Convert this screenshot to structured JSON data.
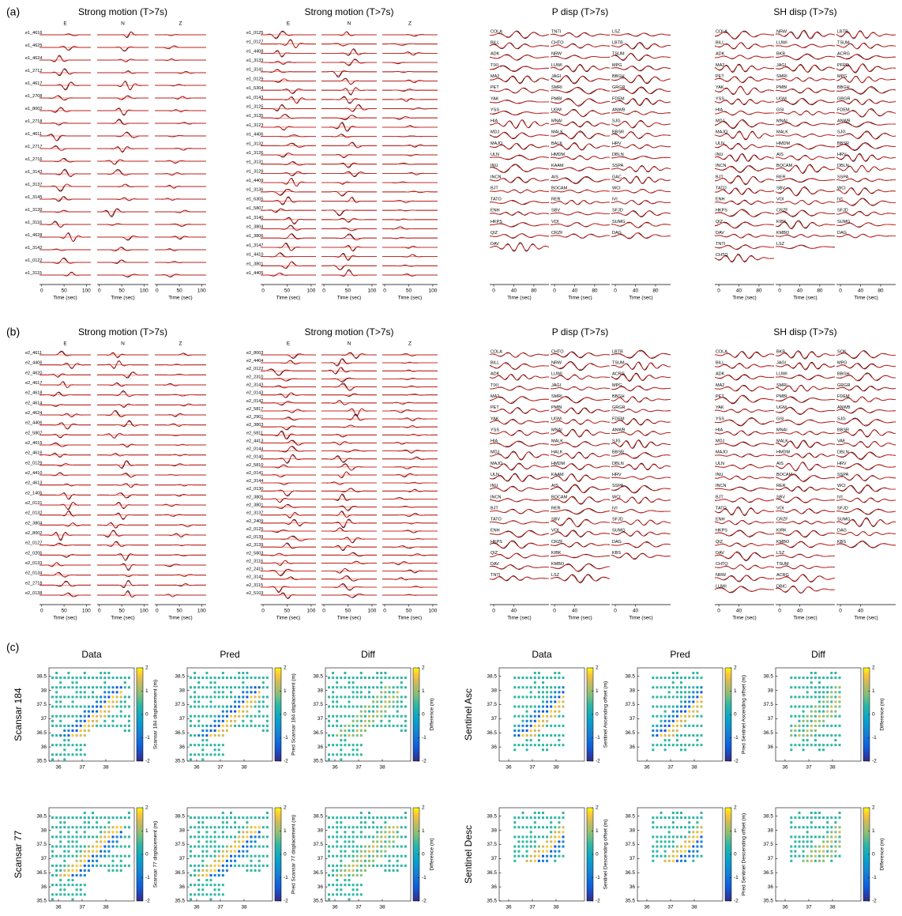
{
  "panels": [
    {
      "label": "(a)",
      "groups": [
        {
          "kind": "strong",
          "title": "Strong motion (T>7s)",
          "components": [
            "E",
            "N",
            "Z"
          ],
          "xlabel": "Time (sec)",
          "xlim": [
            -5,
            110
          ],
          "xticks": [
            0,
            50,
            100
          ],
          "stations": [
            "e1_4616",
            "e1_4625",
            "e1_4624",
            "e1_2712",
            "e1_4617",
            "e1_2708",
            "e1_8002",
            "e1_2718",
            "e1_4611",
            "e1_2717",
            "e1_2716",
            "e1_3143",
            "e1_3137",
            "e1_3145",
            "e1_3139",
            "e1_3116",
            "e1_4628",
            "e1_3142",
            "e1_0122",
            "e1_3115"
          ]
        },
        {
          "kind": "strong",
          "title": "Strong motion (T>7s)",
          "components": [
            "E",
            "N",
            "Z"
          ],
          "xlabel": "Time (sec)",
          "xlim": [
            -5,
            110
          ],
          "xticks": [
            0,
            50,
            100
          ],
          "stations": [
            "e1_0125",
            "e1_0127",
            "e1_4408",
            "e1_3133",
            "e1_3141",
            "e1_0129",
            "e1_6304",
            "e1_0143",
            "e1_3125",
            "e1_3135",
            "e1_3123",
            "e1_4406",
            "e1_3132",
            "e1_3126",
            "e1_3131",
            "e1_3129",
            "e1_4409",
            "e1_3136",
            "e1_6305",
            "e1_5807",
            "e1_3140",
            "e1_3804",
            "e1_3806",
            "e1_3147",
            "e1_4410",
            "e1_3801",
            "e1_4405"
          ]
        },
        {
          "kind": "disp",
          "title": "P disp (T>7s)",
          "xlabel": "Time (sec)",
          "xlim": [
            -8,
            110
          ],
          "xticks": [
            0,
            40,
            80
          ],
          "columns": [
            [
              "COLA",
              "BILL",
              "ADK",
              "TIXI",
              "MA2",
              "PET",
              "YAK",
              "YSS",
              "HIA",
              "MDJ",
              "MAJO",
              "ULN",
              "INU",
              "INCN",
              "BJT",
              "TATO",
              "ENH",
              "HKPS",
              "QIZ",
              "DAV"
            ],
            [
              "TNTI",
              "CHTO",
              "NRW",
              "LUWI",
              "JAGI",
              "SMRI",
              "PMBI",
              "UGM",
              "MNAI",
              "MALK",
              "BALK",
              "HMDM",
              "KAAM",
              "AIS",
              "BOCAM",
              "RER",
              "SBV",
              "VOI",
              "CRZF"
            ],
            [
              "LSZ",
              "LBTB",
              "TSUM",
              "MPG",
              "BBGH",
              "GRGR",
              "FDEM",
              "ANWB",
              "SJG",
              "BBSR",
              "HRV",
              "DBLN",
              "SSPA",
              "GAC",
              "WCI",
              "IVI",
              "SFJD",
              "SUMG",
              "DAG"
            ]
          ]
        },
        {
          "kind": "disp",
          "title": "SH disp (T>7s)",
          "xlabel": "Time (sec)",
          "xlim": [
            -8,
            110
          ],
          "xticks": [
            0,
            40,
            80
          ],
          "columns": [
            [
              "COLA",
              "BILL",
              "ADK",
              "MA2",
              "PET",
              "YAK",
              "YSS",
              "HIA",
              "MDJ",
              "MAJO",
              "ULN",
              "INU",
              "INCN",
              "BJT",
              "TATO",
              "ENH",
              "HKPS",
              "QIZ",
              "DAV",
              "TNTI",
              "CHTO"
            ],
            [
              "NRW",
              "LUWI",
              "BKB",
              "JAGI",
              "SMRI",
              "PMBI",
              "UGM",
              "GSI",
              "MNAI",
              "MALK",
              "HMDM",
              "AIS",
              "BOCAM",
              "RER",
              "SBV",
              "VOI",
              "CRZF",
              "KIBK",
              "KMBO",
              "LSZ"
            ],
            [
              "LBTB",
              "TSUM",
              "ACRG",
              "PFRD",
              "MPG",
              "BBGH",
              "GRGR",
              "FDEM",
              "ANWB",
              "SJG",
              "BBSR",
              "HRV",
              "DBLN",
              "SSPA",
              "WCI",
              "IVI",
              "SFJD",
              "SUMG",
              "DAG"
            ]
          ]
        }
      ]
    },
    {
      "label": "(b)",
      "groups": [
        {
          "kind": "strong",
          "title": "Strong motion (T>7s)",
          "components": [
            "E",
            "N",
            "Z"
          ],
          "xlabel": "Time (sec)",
          "xlim": [
            -5,
            110
          ],
          "xticks": [
            0,
            50,
            100
          ],
          "stations": [
            "e2_4611",
            "e2_4406",
            "e2_4620",
            "e2_4617",
            "e2_4618",
            "e2_4614",
            "e2_4624",
            "e2_4406",
            "e2_5807",
            "e2_4615",
            "e2_4616",
            "e2_0129",
            "e2_4410",
            "e2_4613",
            "e2_1405",
            "e2_0131",
            "e2_0132",
            "e2_3804",
            "e2_8002",
            "e2_0127",
            "e2_0205",
            "e2_0133",
            "e2_0134",
            "e2_2718",
            "e2_0138"
          ]
        },
        {
          "kind": "strong",
          "title": "Strong motion (T>7s)",
          "components": [
            "E",
            "N",
            "Z"
          ],
          "xlabel": "Time (sec)",
          "xlim": [
            -5,
            110
          ],
          "xticks": [
            0,
            50,
            100
          ],
          "stations": [
            "e2_8003",
            "e2_4404",
            "e2_0122",
            "e2_2310",
            "e2_3143",
            "e2_0143",
            "e2_0142",
            "e2_5817",
            "e2_2901",
            "e2_3803",
            "e2_5811",
            "e2_4413",
            "e2_0144",
            "e2_0140",
            "e2_5810",
            "e2_0141",
            "e2_3144",
            "e2_0130",
            "e2_3805",
            "e2_3801",
            "e2_3137",
            "e2_2409",
            "e2_0125",
            "e2_0139",
            "e2_3139",
            "e2_5803",
            "e2_3116",
            "e2_2415",
            "e2_3142",
            "e2_3115",
            "e2_5103"
          ]
        },
        {
          "kind": "disp",
          "title": "P disp (T>7s)",
          "xlabel": "Time (sec)",
          "xlim": [
            -8,
            110
          ],
          "xticks": [
            0,
            40
          ],
          "columns": [
            [
              "COLA",
              "BILL",
              "ADK",
              "TIXI",
              "MA2",
              "PET",
              "YAK",
              "YSS",
              "HIA",
              "MDJ",
              "MAJO",
              "ULN",
              "INU",
              "INCN",
              "BJT",
              "TATO",
              "ENH",
              "HKPS",
              "QIZ",
              "DAV",
              "TNTI"
            ],
            [
              "CHTO",
              "NRW",
              "LUWI",
              "JAGI",
              "SMRI",
              "PMBI",
              "UGM",
              "MNAI",
              "MALK",
              "HALK",
              "HMDM",
              "KAAM",
              "AIS",
              "BOCAM",
              "RER",
              "SBV",
              "VOI",
              "CRZF",
              "KIBK",
              "KMBO",
              "LSZ"
            ],
            [
              "LBTB",
              "TSUM",
              "ACRG",
              "MPG",
              "BBGH",
              "GRGR",
              "FDEM",
              "ANWB",
              "SJG",
              "BBSR",
              "DBLN",
              "HRV",
              "SSPA",
              "WCI",
              "IVI",
              "SFJD",
              "SUMG",
              "DAG",
              "KBS"
            ]
          ]
        },
        {
          "kind": "disp",
          "title": "SH disp (T>7s)",
          "xlabel": "Time (sec)",
          "xlim": [
            -8,
            110
          ],
          "xticks": [
            0,
            40
          ],
          "columns": [
            [
              "COLA",
              "BILL",
              "ADK",
              "MA2",
              "PET",
              "YAK",
              "YSS",
              "HIA",
              "MDJ",
              "MAJO",
              "ULN",
              "INU",
              "INCN",
              "BJT",
              "TATO",
              "ENH",
              "HKPS",
              "QIZ",
              "DAV",
              "CHTO",
              "NRW",
              "LUWI"
            ],
            [
              "BKB",
              "JAGI",
              "LUWI",
              "SMRI",
              "PMBI",
              "UGM",
              "GSI",
              "MNAI",
              "MALK",
              "HMDM",
              "AIS",
              "BOCAM",
              "RER",
              "SBV",
              "VOI",
              "CRZF",
              "KIRK",
              "KMBO",
              "LSZ",
              "TSUM",
              "ACRG",
              "DBIC"
            ],
            [
              "SOK",
              "MPG",
              "BBGH",
              "GRGR",
              "FDEM",
              "ANWB",
              "SJG",
              "BBSR",
              "VAE",
              "DBLN",
              "HRV",
              "SSPA",
              "WCI",
              "IVI",
              "SFJD",
              "SUMG",
              "DAG",
              "KBS"
            ]
          ]
        }
      ]
    }
  ],
  "maps": {
    "label": "(c)",
    "xlim": [
      35.6,
      39.2
    ],
    "ylim": [
      35.5,
      38.8
    ],
    "xticks": [
      36,
      37,
      38
    ],
    "clim": [
      -2,
      2
    ],
    "cticks": [
      -2,
      -1,
      0,
      1,
      2
    ],
    "sets": [
      {
        "headers": [
          "Data",
          "Pred",
          "Diff"
        ],
        "rows": [
          {
            "title": "Scansar 184",
            "yticks": [
              35.5,
              36,
              36.5,
              37,
              37.5,
              38,
              38.5
            ],
            "cbar_labels": [
              "Scansar 184 displacement (m)",
              "Pred Scansar 184 displacement (m)",
              "Difference (m)"
            ]
          },
          {
            "title": "Scansar 77",
            "yticks": [
              35.5,
              36,
              36.5,
              37,
              37.5,
              38,
              38.5
            ],
            "cbar_labels": [
              "Scansar 77 displacement (m)",
              "Pred Scansar 77 displacement (m)",
              "Difference (m)"
            ]
          }
        ]
      },
      {
        "headers": [
          "Data",
          "Pred",
          "Diff"
        ],
        "rows": [
          {
            "title": "Sentinel Asc",
            "yticks": [
              36,
              36.5,
              37,
              37.5,
              38,
              38.5
            ],
            "cbar_labels": [
              "Sentinel Ascending offset (m)",
              "Pred Sentinel Ascending offset (m)",
              "Difference (m)"
            ]
          },
          {
            "title": "Sentinel Desc",
            "yticks": [
              35.5,
              36,
              36.5,
              37,
              37.5,
              38,
              38.5
            ],
            "cbar_labels": [
              "Sentinel Descending offset (m)",
              "Pred Sentinel Descending offset (m)",
              "Difference (m)"
            ]
          }
        ]
      }
    ]
  }
}
